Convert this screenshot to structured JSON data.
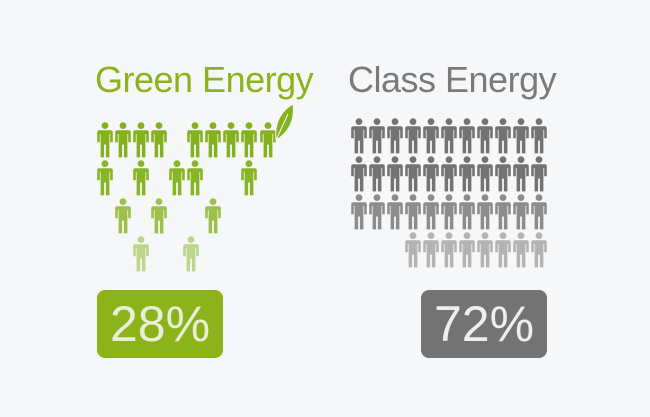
{
  "chart_data": {
    "type": "table",
    "series": [
      {
        "name": "Green Energy",
        "value_label": "28%",
        "value": 28,
        "color": "#8cb21c"
      },
      {
        "name": "Class Energy",
        "value_label": "72%",
        "value": 72,
        "color": "#757575"
      }
    ],
    "icons": {
      "person": "person-icon",
      "leaf": "leaf-icon"
    }
  }
}
